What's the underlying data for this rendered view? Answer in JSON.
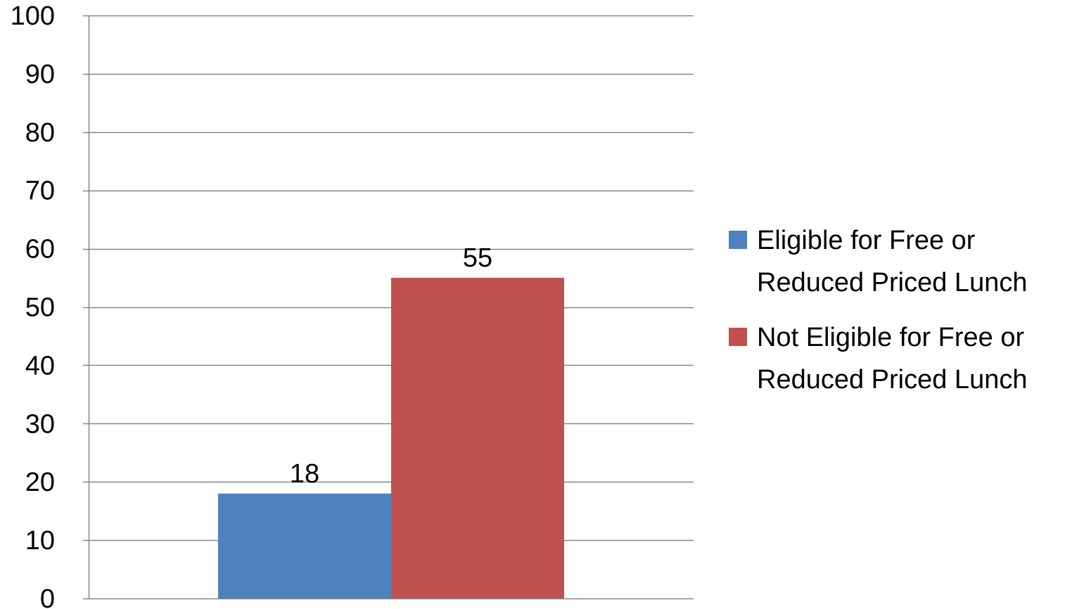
{
  "chart_data": {
    "type": "bar",
    "categories": [
      ""
    ],
    "series": [
      {
        "name": "Eligible for Free or Reduced Priced Lunch",
        "values": [
          18
        ],
        "color": "#4F81BD"
      },
      {
        "name": "Not Eligible for Free or Reduced Priced Lunch",
        "values": [
          55
        ],
        "color": "#C0504D"
      }
    ],
    "title": "",
    "xlabel": "",
    "ylabel": "",
    "ylim": [
      0,
      100
    ],
    "yticks": [
      "0",
      "10",
      "20",
      "30",
      "40",
      "50",
      "60",
      "70",
      "80",
      "90",
      "100"
    ],
    "data_labels": [
      "18",
      "55"
    ],
    "grid": true,
    "legend_position": "right"
  }
}
